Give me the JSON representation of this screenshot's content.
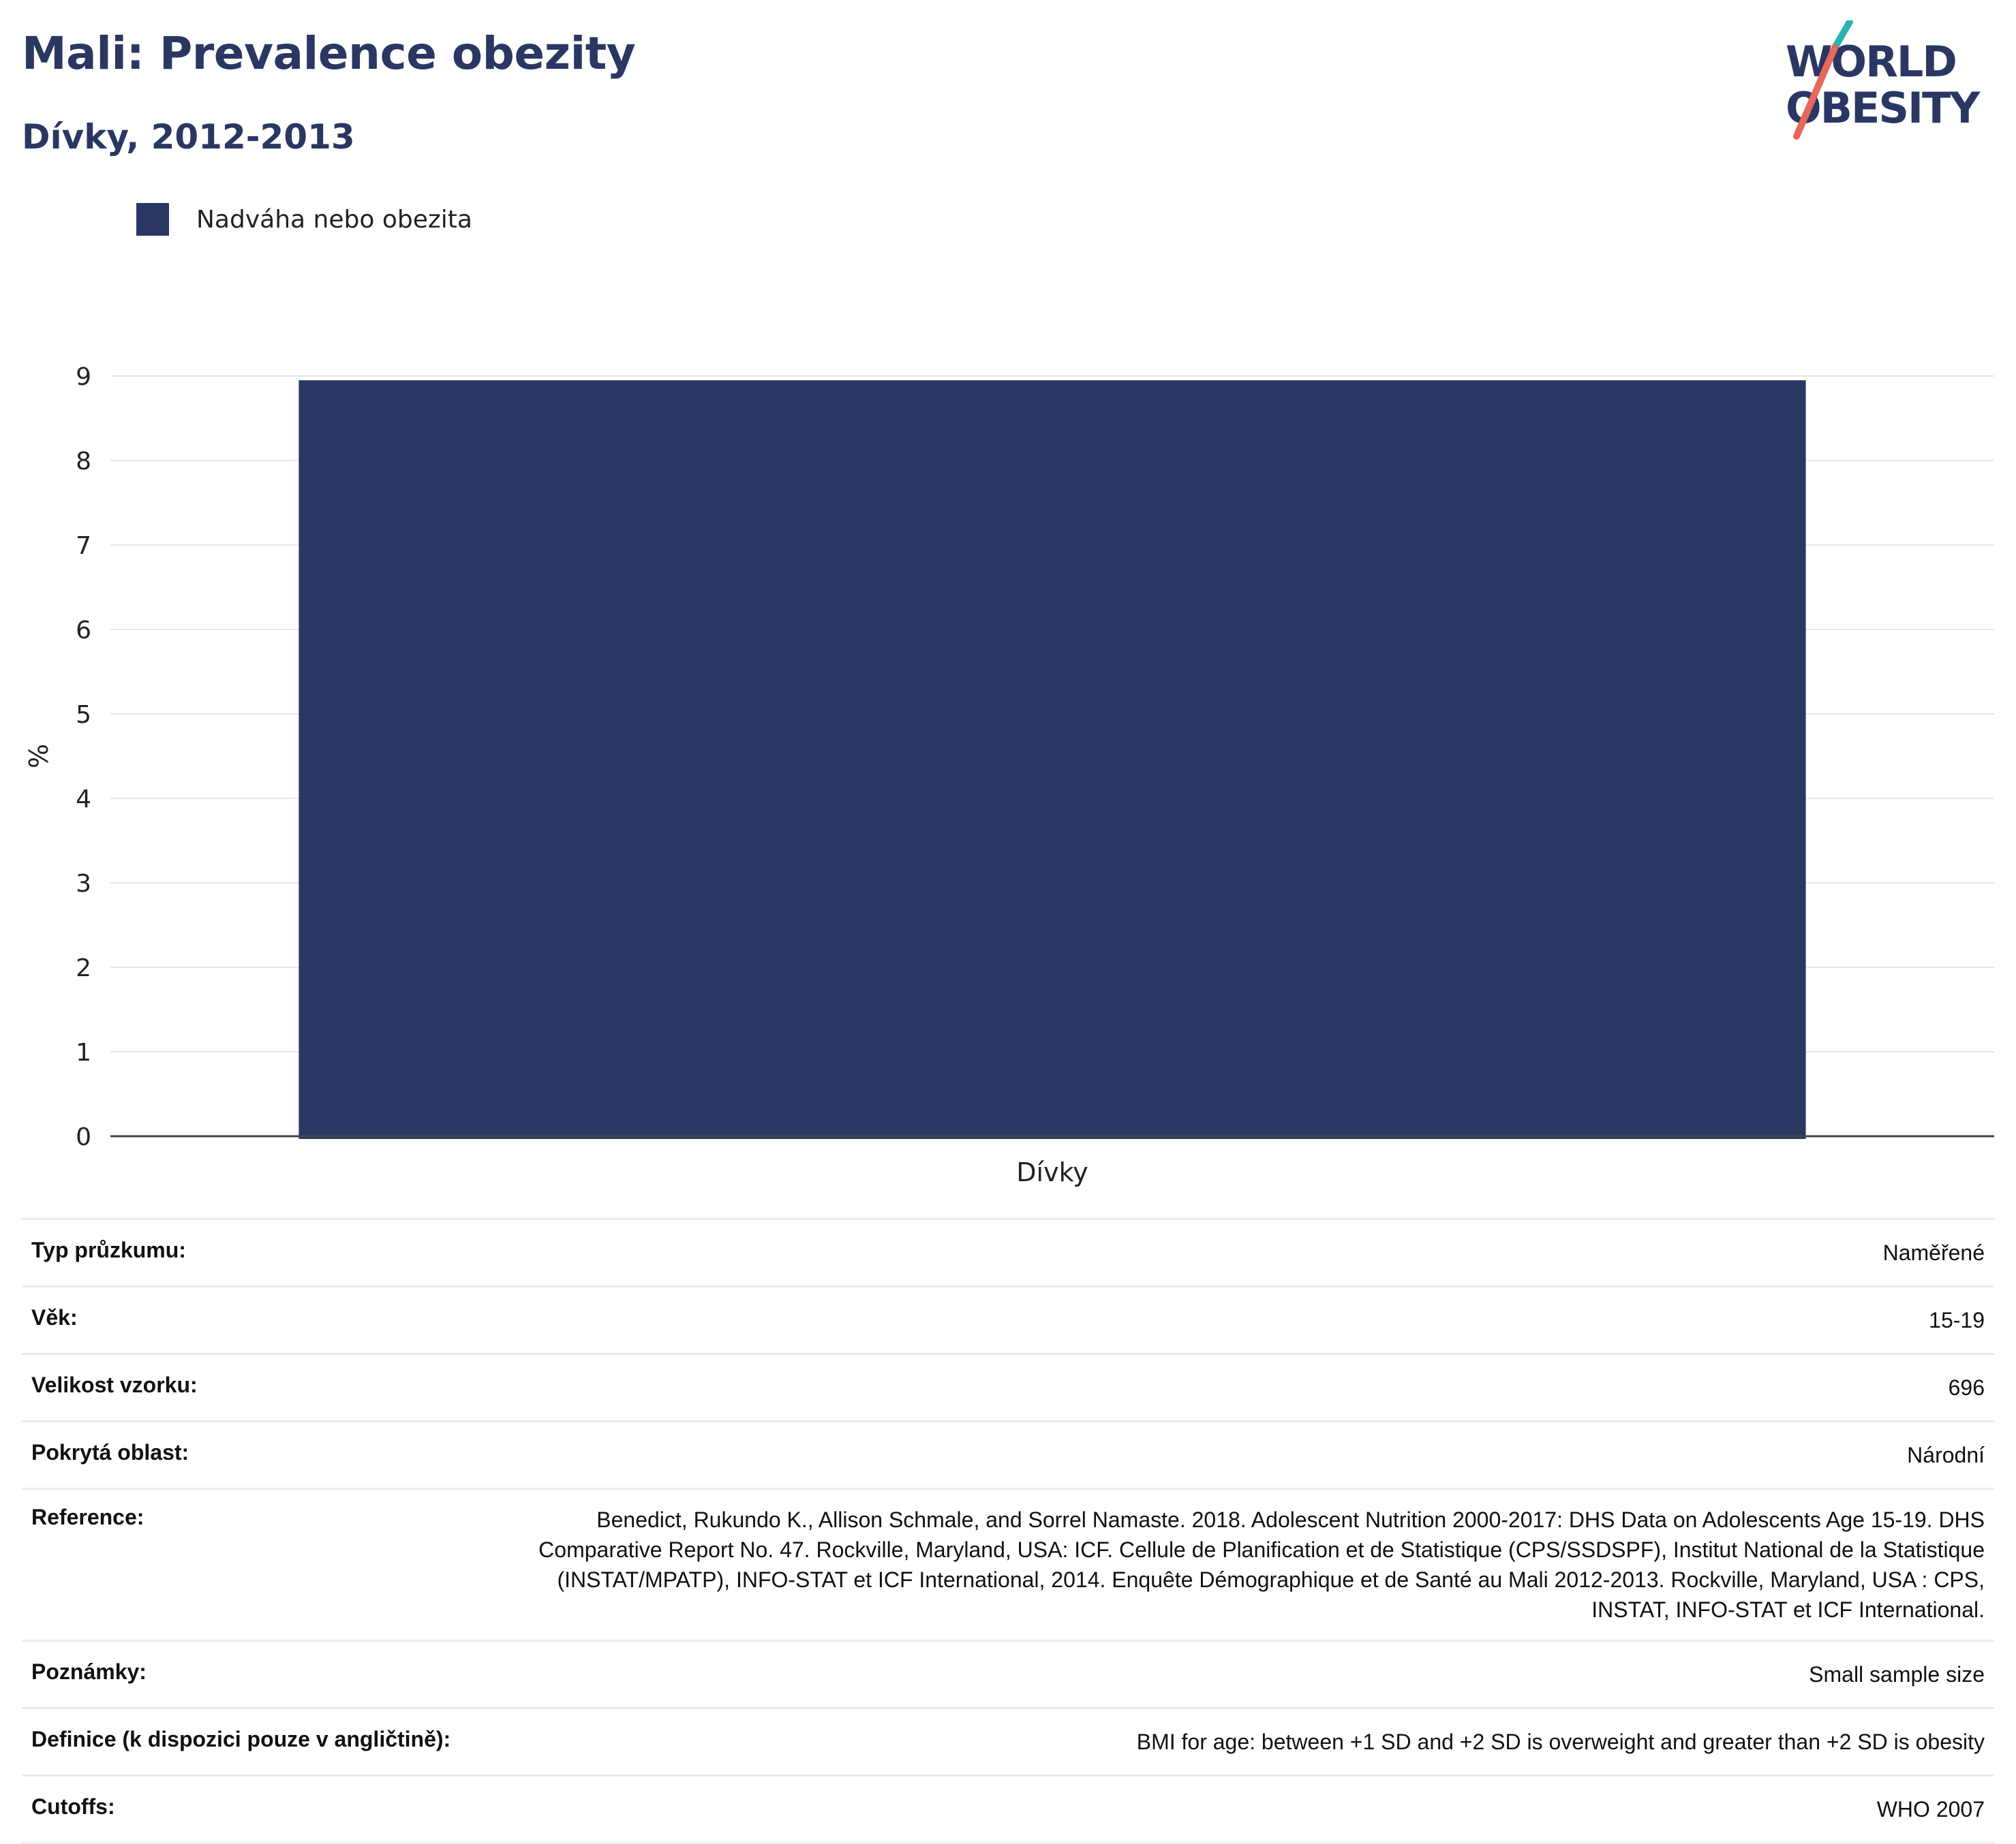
{
  "header": {
    "title": "Mali: Prevalence obezity",
    "subtitle": "Dívky, 2012-2013",
    "logo_line1": "WORLD",
    "logo_line2": "OBESITY"
  },
  "legend": {
    "label": "Nadváha nebo obezita",
    "color": "#2a3762"
  },
  "chart_data": {
    "type": "bar",
    "categories": [
      "Dívky"
    ],
    "series": [
      {
        "name": "Nadváha nebo obezita",
        "values": [
          8.95
        ],
        "color": "#2a3762"
      }
    ],
    "ylabel": "%",
    "ylim": [
      0,
      9
    ],
    "yticks": [
      0,
      1,
      2,
      3,
      4,
      5,
      6,
      7,
      8,
      9
    ],
    "grid": true,
    "legend_position": "top-left"
  },
  "info": {
    "rows": [
      {
        "key": "Typ průzkumu:",
        "value": "Naměřené"
      },
      {
        "key": "Věk:",
        "value": "15-19"
      },
      {
        "key": "Velikost vzorku:",
        "value": "696"
      },
      {
        "key": "Pokrytá oblast:",
        "value": "Národní"
      },
      {
        "key": "Reference:",
        "value": "Benedict, Rukundo K., Allison Schmale, and Sorrel Namaste. 2018. Adolescent Nutrition 2000-2017: DHS Data on Adolescents Age 15-19. DHS Comparative Report No. 47. Rockville, Maryland, USA: ICF. Cellule de Planification et de Statistique (CPS/SSDSPF), Institut National de la Statistique (INSTAT/MPATP), INFO-STAT et ICF International, 2014. Enquête Démographique et de Santé au Mali 2012-2013. Rockville, Maryland, USA : CPS, INSTAT, INFO-STAT et ICF International."
      },
      {
        "key": "Poznámky:",
        "value": "Small sample size"
      },
      {
        "key": "Definice (k dispozici pouze v angličtině):",
        "value": "BMI for age: between +1 SD and +2 SD is overweight and greater than +2 SD is obesity"
      },
      {
        "key": "Cutoffs:",
        "value": "WHO 2007"
      }
    ]
  }
}
